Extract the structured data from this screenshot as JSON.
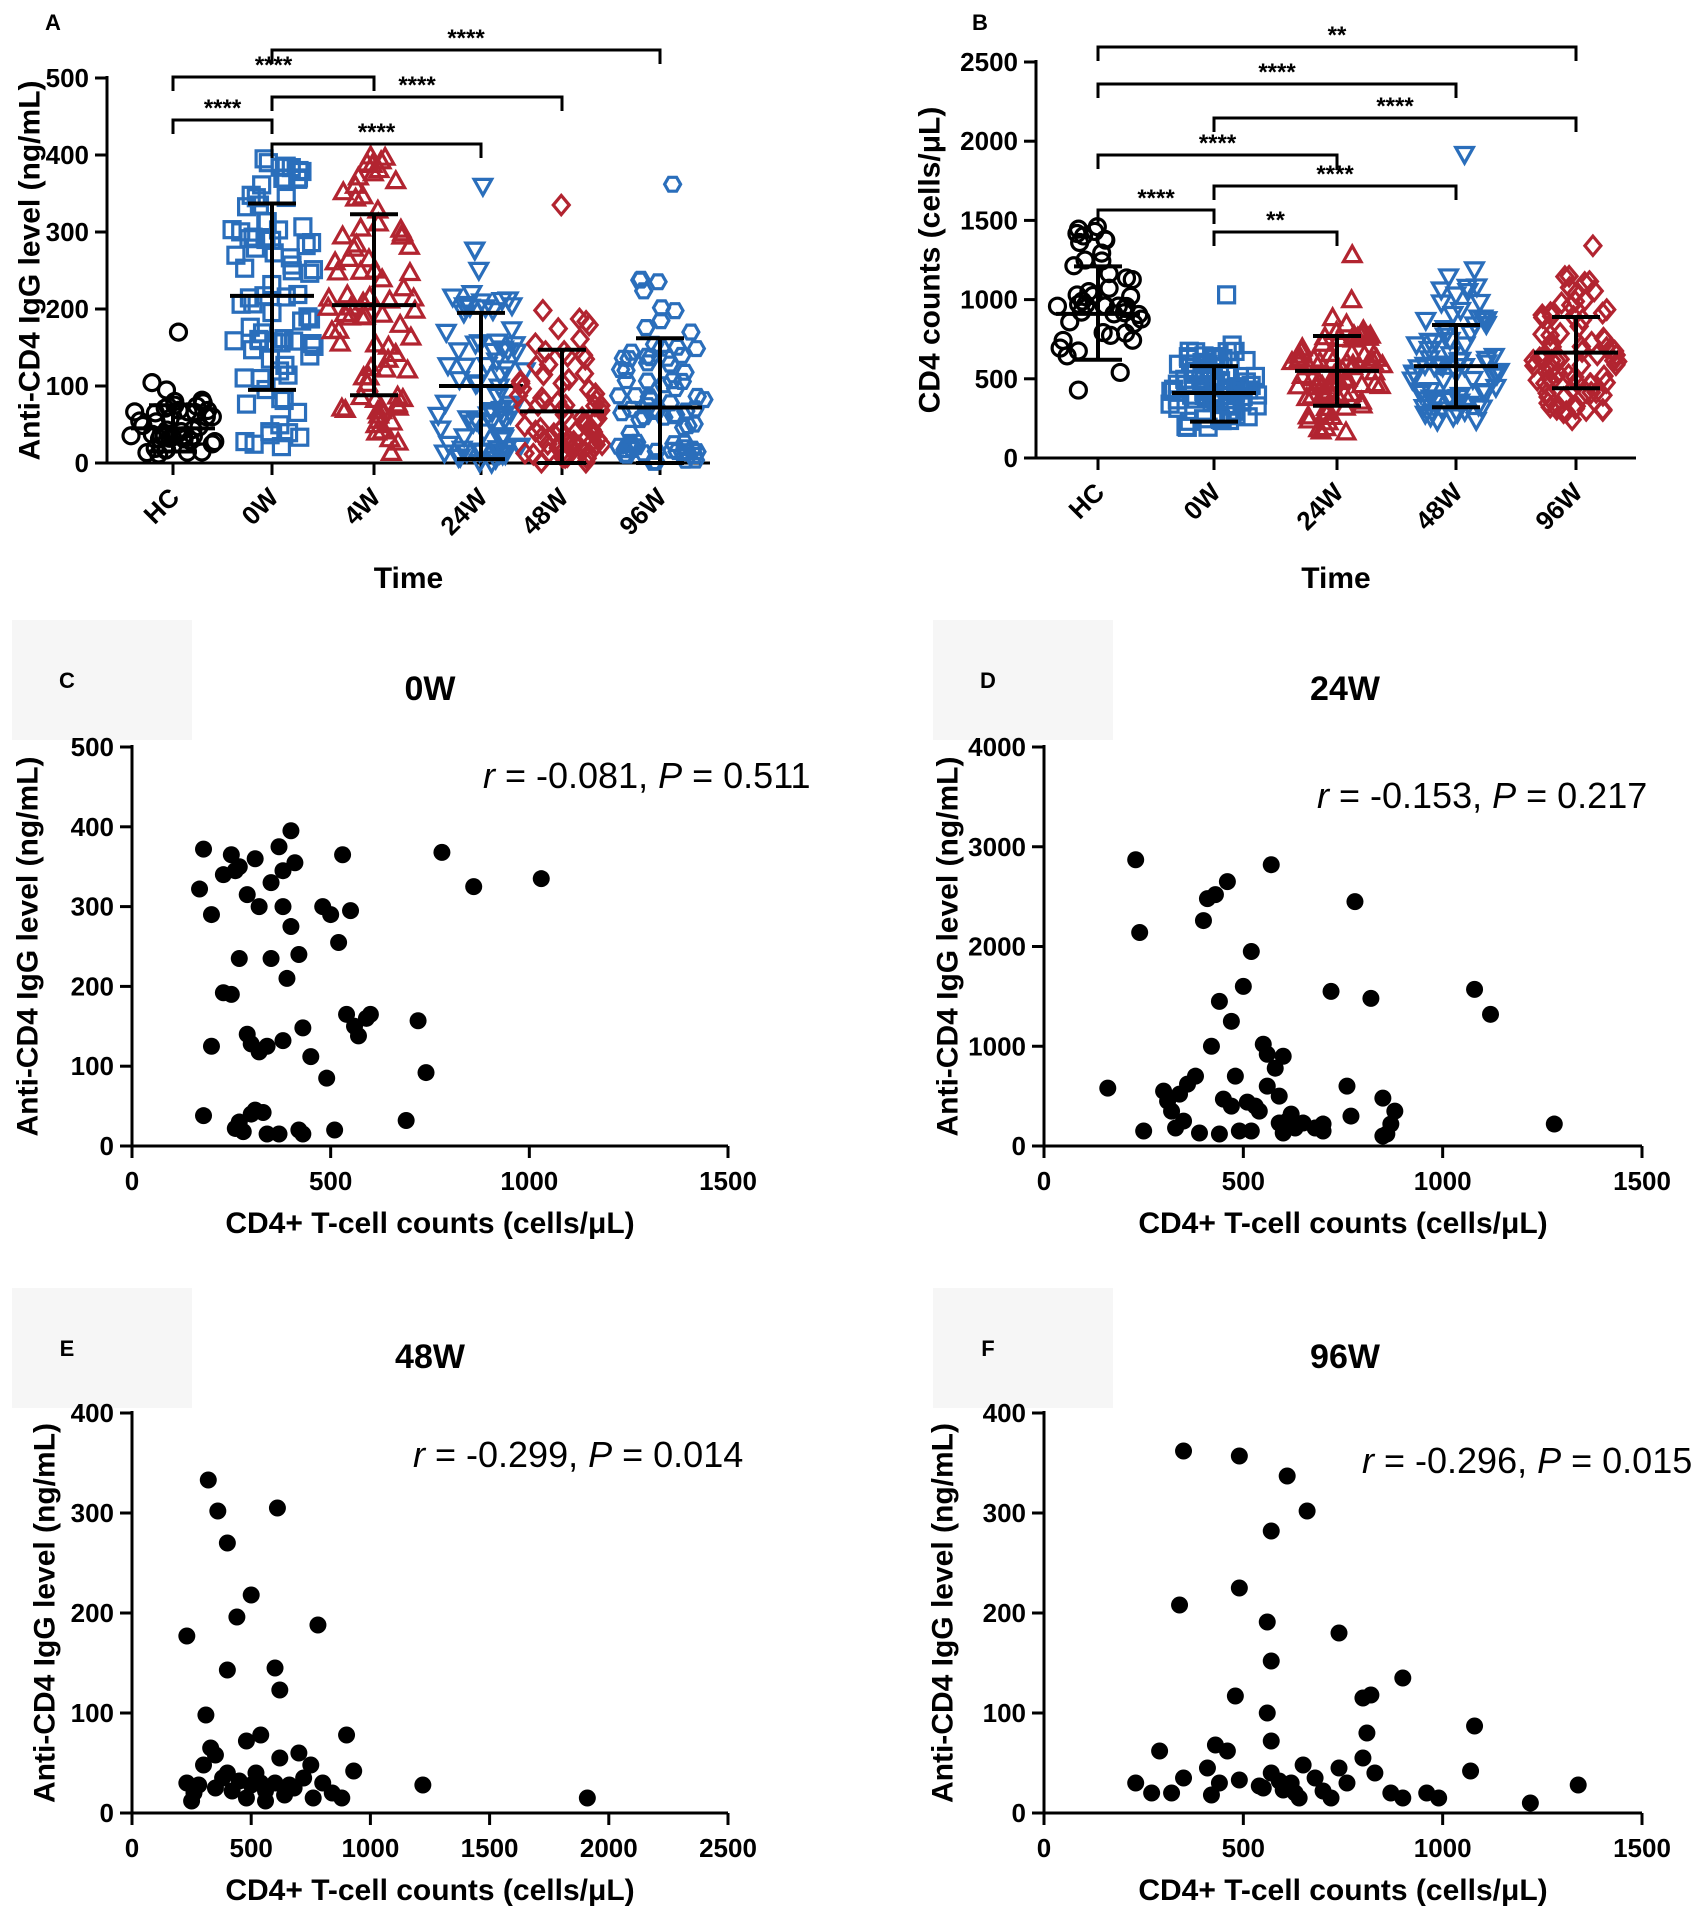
{
  "chart_data": [
    {
      "panel": "A",
      "type": "scatter",
      "subtype": "dot_plot_mean_sd",
      "title": "",
      "xlabel": "Time",
      "ylabel": "Anti-CD4 IgG level (ng/mL)",
      "ylim": [
        0,
        500
      ],
      "yticks": [
        0,
        100,
        200,
        300,
        400,
        500
      ],
      "categories": [
        "HC",
        "0W",
        "4W",
        "24W",
        "48W",
        "96W"
      ],
      "series": [
        {
          "name": "HC",
          "marker": "circle",
          "color": "#000000",
          "filled": false,
          "mean": 45,
          "sd_low": 15,
          "sd_high": 75,
          "min": 10,
          "max": 170
        },
        {
          "name": "0W",
          "marker": "square",
          "color": "#2a6ebb",
          "filled": false,
          "mean": 217,
          "sd_low": 95,
          "sd_high": 337,
          "min": 10,
          "max": 395
        },
        {
          "name": "4W",
          "marker": "triangle-up",
          "color": "#b22430",
          "filled": false,
          "mean": 205,
          "sd_low": 88,
          "sd_high": 323,
          "min": 10,
          "max": 398
        },
        {
          "name": "24W",
          "marker": "triangle-down",
          "color": "#2a6ebb",
          "filled": false,
          "mean": 100,
          "sd_low": 5,
          "sd_high": 195,
          "min": 0,
          "max": 360
        },
        {
          "name": "48W",
          "marker": "diamond",
          "color": "#b22430",
          "filled": false,
          "mean": 67,
          "sd_low": 0,
          "sd_high": 147,
          "min": 0,
          "max": 335
        },
        {
          "name": "96W",
          "marker": "hexagon",
          "color": "#2a6ebb",
          "filled": false,
          "mean": 72,
          "sd_low": 0,
          "sd_high": 162,
          "min": 0,
          "max": 362
        }
      ],
      "comparisons": [
        {
          "from": "0W",
          "to": "96W",
          "label": "****"
        },
        {
          "from": "HC",
          "to": "4W",
          "label": "****"
        },
        {
          "from": "0W",
          "to": "48W",
          "label": "****"
        },
        {
          "from": "HC",
          "to": "0W",
          "label": "****"
        },
        {
          "from": "0W",
          "to": "24W",
          "label": "****"
        }
      ]
    },
    {
      "panel": "B",
      "type": "scatter",
      "subtype": "dot_plot_mean_sd",
      "title": "",
      "xlabel": "Time",
      "ylabel": "CD4 counts (cells/μL)",
      "ylim": [
        0,
        2500
      ],
      "yticks": [
        0,
        500,
        1000,
        1500,
        2000,
        2500
      ],
      "categories": [
        "HC",
        "0W",
        "24W",
        "48W",
        "96W"
      ],
      "series": [
        {
          "name": "HC",
          "marker": "circle",
          "color": "#000000",
          "filled": false,
          "mean": 910,
          "sd_low": 620,
          "sd_high": 1210,
          "min": 310,
          "max": 1460
        },
        {
          "name": "0W",
          "marker": "square",
          "color": "#2a6ebb",
          "filled": false,
          "mean": 410,
          "sd_low": 230,
          "sd_high": 580,
          "min": 180,
          "max": 1030
        },
        {
          "name": "24W",
          "marker": "triangle-up",
          "color": "#b22430",
          "filled": false,
          "mean": 550,
          "sd_low": 330,
          "sd_high": 770,
          "min": 150,
          "max": 1280
        },
        {
          "name": "48W",
          "marker": "triangle-down",
          "color": "#2a6ebb",
          "filled": false,
          "mean": 580,
          "sd_low": 320,
          "sd_high": 840,
          "min": 230,
          "max": 1920
        },
        {
          "name": "96W",
          "marker": "diamond",
          "color": "#b22430",
          "filled": false,
          "mean": 665,
          "sd_low": 440,
          "sd_high": 890,
          "min": 230,
          "max": 1340
        }
      ],
      "comparisons": [
        {
          "from": "HC",
          "to": "96W",
          "label": "**"
        },
        {
          "from": "HC",
          "to": "48W",
          "label": "****"
        },
        {
          "from": "0W",
          "to": "96W",
          "label": "****"
        },
        {
          "from": "HC",
          "to": "24W",
          "label": "****"
        },
        {
          "from": "0W",
          "to": "48W",
          "label": "****"
        },
        {
          "from": "HC",
          "to": "0W",
          "label": "****"
        },
        {
          "from": "0W",
          "to": "24W",
          "label": "**"
        }
      ]
    },
    {
      "panel": "C",
      "type": "scatter",
      "title": "0W",
      "xlabel": "CD4+ T-cell counts (cells/μL)",
      "ylabel": "Anti-CD4 IgG level (ng/mL)",
      "xlim": [
        0,
        1500
      ],
      "ylim": [
        0,
        500
      ],
      "xticks": [
        0,
        500,
        1000,
        1500
      ],
      "yticks": [
        0,
        100,
        200,
        300,
        400,
        500
      ],
      "stat": {
        "r_label": "r",
        "r_value": " = -0.081, ",
        "p_label": "P",
        "p_value": " = 0.511"
      },
      "points": [
        [
          180,
          372
        ],
        [
          170,
          322
        ],
        [
          200,
          290
        ],
        [
          230,
          340
        ],
        [
          250,
          365
        ],
        [
          260,
          345
        ],
        [
          270,
          350
        ],
        [
          290,
          315
        ],
        [
          310,
          360
        ],
        [
          320,
          300
        ],
        [
          350,
          330
        ],
        [
          370,
          375
        ],
        [
          380,
          345
        ],
        [
          400,
          395
        ],
        [
          410,
          355
        ],
        [
          380,
          300
        ],
        [
          400,
          275
        ],
        [
          420,
          240
        ],
        [
          390,
          210
        ],
        [
          350,
          235
        ],
        [
          270,
          235
        ],
        [
          230,
          192
        ],
        [
          250,
          190
        ],
        [
          290,
          140
        ],
        [
          300,
          128
        ],
        [
          320,
          118
        ],
        [
          200,
          125
        ],
        [
          340,
          125
        ],
        [
          380,
          132
        ],
        [
          430,
          148
        ],
        [
          450,
          112
        ],
        [
          480,
          300
        ],
        [
          500,
          290
        ],
        [
          520,
          255
        ],
        [
          530,
          365
        ],
        [
          550,
          295
        ],
        [
          540,
          165
        ],
        [
          560,
          150
        ],
        [
          570,
          138
        ],
        [
          590,
          160
        ],
        [
          600,
          165
        ],
        [
          720,
          157
        ],
        [
          740,
          92
        ],
        [
          490,
          85
        ],
        [
          180,
          38
        ],
        [
          270,
          30
        ],
        [
          300,
          40
        ],
        [
          310,
          45
        ],
        [
          330,
          42
        ],
        [
          260,
          22
        ],
        [
          370,
          15
        ],
        [
          430,
          15
        ],
        [
          510,
          20
        ],
        [
          690,
          32
        ],
        [
          780,
          368
        ],
        [
          860,
          325
        ],
        [
          1030,
          335
        ],
        [
          280,
          18
        ],
        [
          420,
          20
        ],
        [
          340,
          15
        ]
      ]
    },
    {
      "panel": "D",
      "type": "scatter",
      "title": "24W",
      "xlabel": "CD4+ T-cell counts (cells/μL)",
      "ylabel": "Anti-CD4 IgG level (ng/mL)",
      "xlim": [
        0,
        1500
      ],
      "ylim": [
        0,
        4000
      ],
      "xticks": [
        0,
        500,
        1000,
        1500
      ],
      "yticks": [
        0,
        1000,
        2000,
        3000,
        4000
      ],
      "stat": {
        "r_label": "r",
        "r_value": " = -0.153, ",
        "p_label": "P",
        "p_value": " = 0.217"
      },
      "points": [
        [
          230,
          2870
        ],
        [
          240,
          2140
        ],
        [
          160,
          580
        ],
        [
          250,
          150
        ],
        [
          300,
          550
        ],
        [
          310,
          450
        ],
        [
          320,
          350
        ],
        [
          340,
          520
        ],
        [
          350,
          250
        ],
        [
          360,
          620
        ],
        [
          380,
          700
        ],
        [
          390,
          130
        ],
        [
          400,
          2260
        ],
        [
          410,
          2480
        ],
        [
          430,
          2520
        ],
        [
          420,
          1000
        ],
        [
          440,
          1450
        ],
        [
          450,
          470
        ],
        [
          460,
          2650
        ],
        [
          470,
          1250
        ],
        [
          480,
          700
        ],
        [
          490,
          150
        ],
        [
          500,
          1600
        ],
        [
          520,
          1950
        ],
        [
          530,
          400
        ],
        [
          540,
          350
        ],
        [
          550,
          1020
        ],
        [
          560,
          920
        ],
        [
          570,
          2820
        ],
        [
          580,
          780
        ],
        [
          590,
          500
        ],
        [
          600,
          900
        ],
        [
          610,
          250
        ],
        [
          620,
          320
        ],
        [
          650,
          230
        ],
        [
          680,
          180
        ],
        [
          700,
          220
        ],
        [
          720,
          1550
        ],
        [
          760,
          600
        ],
        [
          780,
          2450
        ],
        [
          770,
          300
        ],
        [
          820,
          1480
        ],
        [
          850,
          480
        ],
        [
          860,
          120
        ],
        [
          870,
          220
        ],
        [
          880,
          350
        ],
        [
          1080,
          1570
        ],
        [
          1120,
          1320
        ],
        [
          1280,
          220
        ],
        [
          440,
          120
        ],
        [
          520,
          150
        ],
        [
          560,
          600
        ],
        [
          600,
          130
        ],
        [
          330,
          180
        ],
        [
          470,
          400
        ],
        [
          510,
          440
        ],
        [
          590,
          230
        ],
        [
          630,
          180
        ],
        [
          700,
          150
        ],
        [
          850,
          100
        ]
      ]
    },
    {
      "panel": "E",
      "type": "scatter",
      "title": "48W",
      "xlabel": "CD4+ T-cell counts (cells/μL)",
      "ylabel": "Anti-CD4 IgG level (ng/mL)",
      "xlim": [
        0,
        2500
      ],
      "ylim": [
        0,
        400
      ],
      "xticks": [
        0,
        500,
        1000,
        1500,
        2000,
        2500
      ],
      "yticks": [
        0,
        100,
        200,
        300,
        400
      ],
      "stat": {
        "r_label": "r",
        "r_value": " = -0.299, ",
        "p_label": "P",
        "p_value": " = 0.014"
      },
      "points": [
        [
          320,
          333
        ],
        [
          360,
          302
        ],
        [
          400,
          270
        ],
        [
          610,
          305
        ],
        [
          500,
          218
        ],
        [
          440,
          196
        ],
        [
          230,
          177
        ],
        [
          780,
          188
        ],
        [
          400,
          143
        ],
        [
          600,
          145
        ],
        [
          620,
          123
        ],
        [
          310,
          98
        ],
        [
          330,
          65
        ],
        [
          350,
          58
        ],
        [
          400,
          40
        ],
        [
          480,
          72
        ],
        [
          540,
          78
        ],
        [
          620,
          55
        ],
        [
          700,
          60
        ],
        [
          750,
          48
        ],
        [
          900,
          78
        ],
        [
          930,
          42
        ],
        [
          230,
          30
        ],
        [
          260,
          20
        ],
        [
          300,
          48
        ],
        [
          350,
          25
        ],
        [
          380,
          35
        ],
        [
          420,
          22
        ],
        [
          450,
          32
        ],
        [
          500,
          28
        ],
        [
          520,
          40
        ],
        [
          560,
          22
        ],
        [
          600,
          30
        ],
        [
          640,
          18
        ],
        [
          680,
          25
        ],
        [
          720,
          35
        ],
        [
          760,
          15
        ],
        [
          800,
          30
        ],
        [
          840,
          20
        ],
        [
          880,
          15
        ],
        [
          250,
          12
        ],
        [
          480,
          15
        ],
        [
          560,
          12
        ],
        [
          1220,
          28
        ],
        [
          1910,
          15
        ],
        [
          280,
          28
        ],
        [
          540,
          30
        ],
        [
          660,
          28
        ]
      ]
    },
    {
      "panel": "F",
      "type": "scatter",
      "title": "96W",
      "xlabel": "CD4+ T-cell counts (cells/μL)",
      "ylabel": "Anti-CD4 IgG level (ng/mL)",
      "xlim": [
        0,
        1500
      ],
      "ylim": [
        0,
        400
      ],
      "xticks": [
        0,
        500,
        1000,
        1500
      ],
      "yticks": [
        0,
        100,
        200,
        300,
        400
      ],
      "stat": {
        "r_label": "r",
        "r_value": " = -0.296, ",
        "p_label": "P",
        "p_value": " = 0.015"
      },
      "points": [
        [
          350,
          362
        ],
        [
          490,
          357
        ],
        [
          610,
          337
        ],
        [
          660,
          302
        ],
        [
          570,
          282
        ],
        [
          340,
          208
        ],
        [
          490,
          225
        ],
        [
          560,
          191
        ],
        [
          570,
          152
        ],
        [
          480,
          117
        ],
        [
          560,
          100
        ],
        [
          570,
          72
        ],
        [
          740,
          180
        ],
        [
          800,
          115
        ],
        [
          820,
          118
        ],
        [
          900,
          135
        ],
        [
          1080,
          87
        ],
        [
          230,
          30
        ],
        [
          290,
          62
        ],
        [
          320,
          20
        ],
        [
          410,
          45
        ],
        [
          420,
          18
        ],
        [
          440,
          30
        ],
        [
          430,
          68
        ],
        [
          460,
          62
        ],
        [
          490,
          33
        ],
        [
          540,
          27
        ],
        [
          570,
          40
        ],
        [
          600,
          23
        ],
        [
          620,
          30
        ],
        [
          650,
          48
        ],
        [
          680,
          35
        ],
        [
          700,
          22
        ],
        [
          740,
          45
        ],
        [
          760,
          30
        ],
        [
          800,
          55
        ],
        [
          830,
          40
        ],
        [
          870,
          20
        ],
        [
          900,
          15
        ],
        [
          960,
          20
        ],
        [
          990,
          15
        ],
        [
          1070,
          42
        ],
        [
          1220,
          10
        ],
        [
          1340,
          28
        ],
        [
          270,
          20
        ],
        [
          350,
          35
        ],
        [
          550,
          25
        ],
        [
          630,
          20
        ],
        [
          720,
          15
        ],
        [
          810,
          80
        ],
        [
          590,
          32
        ],
        [
          640,
          15
        ]
      ]
    }
  ]
}
